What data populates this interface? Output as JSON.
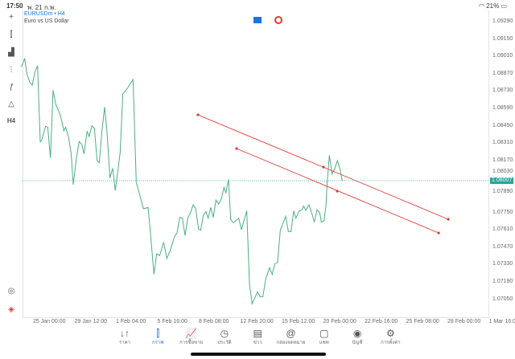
{
  "status": {
    "time": "17:50",
    "date": "พ. 21 ก.พ.",
    "battery": "21%"
  },
  "chart": {
    "symbol": "EURUSDm • H4",
    "description": "Euro vs US Dollar",
    "current_price": "1.08007",
    "line_color": "#4caf80",
    "trendline_color": "#e53935",
    "price_labels": [
      "1.09290",
      "1.09150",
      "1.09010",
      "1.08870",
      "1.08730",
      "1.08590",
      "1.08450",
      "1.08310",
      "1.08170",
      "1.08030",
      "1.07890",
      "1.07750",
      "1.07610",
      "1.07470",
      "1.07330",
      "1.07190",
      "1.07050"
    ],
    "time_labels": [
      "25 Jan 00:00",
      "29 Jan 12:00",
      "1 Feb 04:00",
      "5 Feb 16:00",
      "8 Feb 08:00",
      "12 Feb 20:00",
      "15 Feb 12:00",
      "20 Feb 00:00",
      "22 Feb 16:00",
      "25 Feb 08:00",
      "28 Feb 00:00",
      "1 Mar 16:0"
    ]
  },
  "toolbar": [
    "crosshair-icon",
    "chart-type-icon",
    "indicators-icon",
    "objects-icon",
    "function-icon",
    "shapes-icon",
    "H4"
  ],
  "nav": [
    {
      "label": "ราคา",
      "icon": "↓↑"
    },
    {
      "label": "กราฟ",
      "icon": "⫿"
    },
    {
      "label": "การซื้อขาย",
      "icon": "📈"
    },
    {
      "label": "ประวัติ",
      "icon": "◷"
    },
    {
      "label": "ข่าว",
      "icon": "▤"
    },
    {
      "label": "กล่องจดหมาย",
      "icon": "@"
    },
    {
      "label": "แชท",
      "icon": "▢"
    },
    {
      "label": "บัญชี",
      "icon": "◉"
    },
    {
      "label": "การตั้งค่า",
      "icon": "⚙"
    }
  ]
}
